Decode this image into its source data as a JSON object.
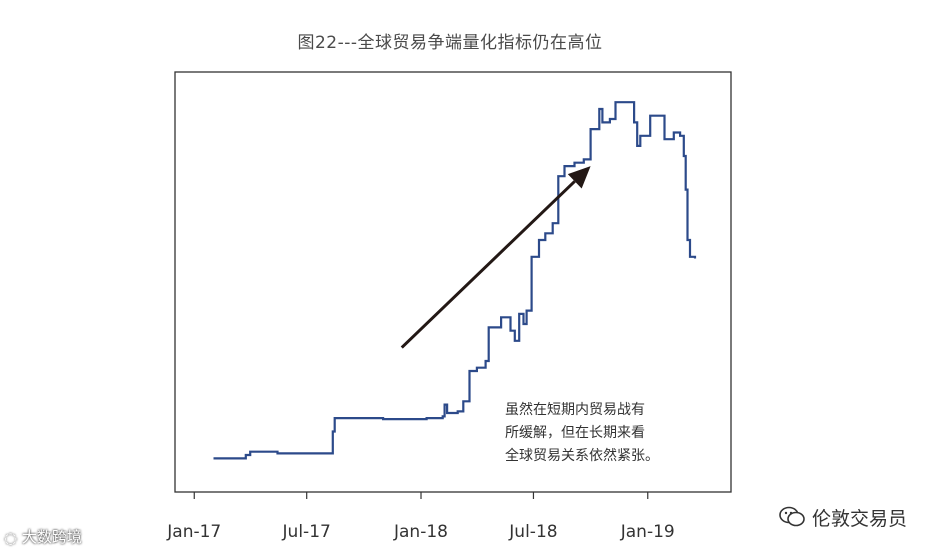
{
  "chart_data": {
    "type": "line",
    "title": "图22---全球贸易争端量化指标仍在高位",
    "x_ticks": [
      "Jan-17",
      "Jul-17",
      "Jan-18",
      "Jul-18",
      "Jan-19"
    ],
    "y_ticks_shown": false,
    "series": [
      {
        "color": "#2c4a8a",
        "points": [
          [
            "2017-02-01",
            10
          ],
          [
            "2017-03-20",
            10
          ],
          [
            "2017-03-25",
            11
          ],
          [
            "2017-04-01",
            12
          ],
          [
            "2017-05-01",
            12
          ],
          [
            "2017-05-15",
            11.5
          ],
          [
            "2017-08-10",
            11.5
          ],
          [
            "2017-08-12",
            18
          ],
          [
            "2017-08-15",
            22
          ],
          [
            "2017-10-01",
            22
          ],
          [
            "2017-11-01",
            21.7
          ],
          [
            "2018-01-05",
            21.7
          ],
          [
            "2018-01-10",
            22
          ],
          [
            "2018-02-05",
            22.5
          ],
          [
            "2018-02-08",
            26
          ],
          [
            "2018-02-12",
            23.5
          ],
          [
            "2018-03-01",
            24
          ],
          [
            "2018-03-10",
            27
          ],
          [
            "2018-03-20",
            36
          ],
          [
            "2018-04-01",
            37
          ],
          [
            "2018-04-15",
            39
          ],
          [
            "2018-04-20",
            49
          ],
          [
            "2018-05-10",
            52
          ],
          [
            "2018-05-25",
            48
          ],
          [
            "2018-06-01",
            45
          ],
          [
            "2018-06-08",
            53
          ],
          [
            "2018-06-15",
            50
          ],
          [
            "2018-06-20",
            54
          ],
          [
            "2018-06-28",
            70
          ],
          [
            "2018-07-10",
            75
          ],
          [
            "2018-07-20",
            77
          ],
          [
            "2018-08-01",
            80
          ],
          [
            "2018-08-10",
            94
          ],
          [
            "2018-08-20",
            97
          ],
          [
            "2018-09-05",
            98
          ],
          [
            "2018-09-20",
            99
          ],
          [
            "2018-10-01",
            108
          ],
          [
            "2018-10-15",
            114
          ],
          [
            "2018-10-20",
            110
          ],
          [
            "2018-11-01",
            111
          ],
          [
            "2018-11-10",
            116
          ],
          [
            "2018-12-05",
            116
          ],
          [
            "2018-12-10",
            110
          ],
          [
            "2018-12-15",
            103
          ],
          [
            "2018-12-20",
            106
          ],
          [
            "2019-01-05",
            112
          ],
          [
            "2019-01-20",
            112
          ],
          [
            "2019-01-28",
            105
          ],
          [
            "2019-02-05",
            105
          ],
          [
            "2019-02-12",
            107
          ],
          [
            "2019-02-22",
            106
          ],
          [
            "2019-02-28",
            100
          ],
          [
            "2019-03-03",
            90
          ],
          [
            "2019-03-06",
            75
          ],
          [
            "2019-03-10",
            70
          ],
          [
            "2019-03-18",
            69.5
          ]
        ]
      }
    ],
    "x_range": [
      "2016-12-01",
      "2019-05-15"
    ],
    "y_range": [
      0,
      125
    ],
    "grid": false,
    "annotations": {
      "arrow": {
        "from": [
          "2017-12-01",
          43
        ],
        "to": [
          "2018-10-01",
          97
        ]
      },
      "text_lines": [
        "虽然在短期内贸易战有",
        "所缓解，但在长期来看",
        "全球贸易关系依然紧张。"
      ]
    }
  },
  "watermarks": {
    "left": "大数跨境",
    "right": "伦敦交易员"
  },
  "colors": {
    "line": "#2c4a8a",
    "axis": "#333333",
    "arrow": "#231815"
  }
}
